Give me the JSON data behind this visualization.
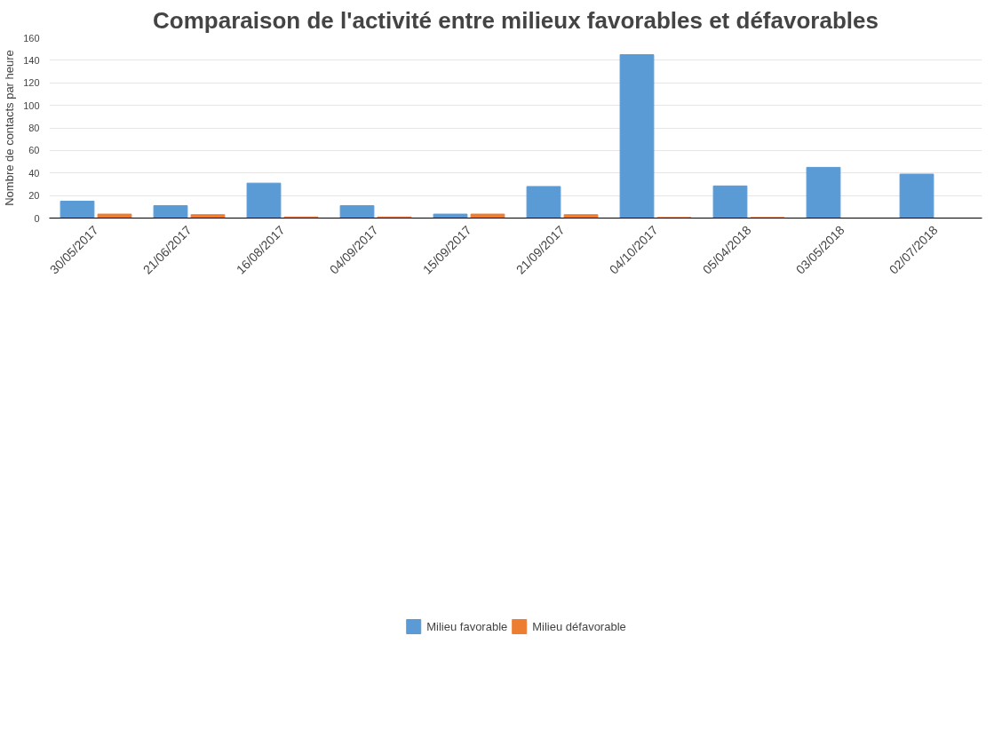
{
  "chart_data": {
    "type": "bar",
    "title": "Comparaison de l'activité entre milieux favorables et défavorables",
    "ylabel": "Nombre de contacts par heure",
    "categories": [
      "30/05/2017",
      "21/06/2017",
      "16/08/2017",
      "04/09/2017",
      "15/09/2017",
      "21/09/2017",
      "04/10/2017",
      "05/04/2018",
      "03/05/2018",
      "02/07/2018"
    ],
    "series": [
      {
        "name": "Milieu favorable",
        "color": "#5b9bd5",
        "values": [
          15,
          11,
          31,
          11,
          3.5,
          28,
          145,
          28.5,
          45,
          39
        ]
      },
      {
        "name": "Milieu défavorable",
        "color": "#ed7d31",
        "values": [
          3.5,
          3,
          1,
          1,
          3.5,
          3,
          0.5,
          0.5,
          null,
          null
        ]
      }
    ],
    "ylim": [
      0,
      160
    ],
    "yticks": [
      0,
      20,
      40,
      60,
      80,
      100,
      120,
      140,
      160
    ],
    "grid": "y",
    "legend": "bottom"
  }
}
